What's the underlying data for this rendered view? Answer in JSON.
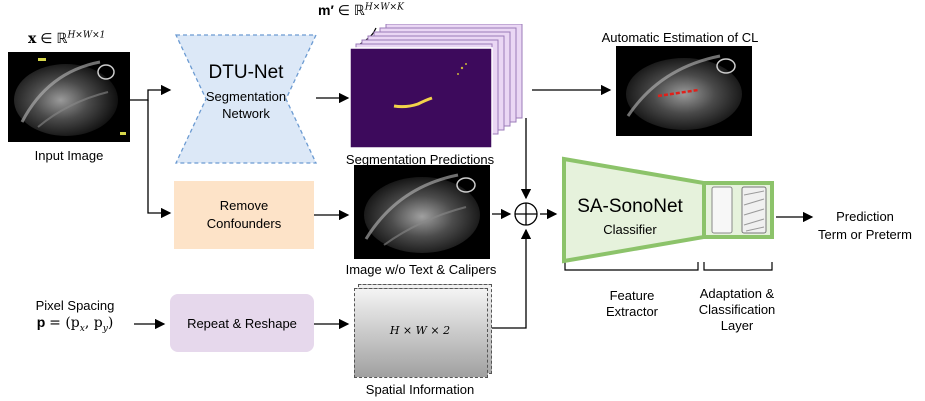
{
  "input": {
    "math_label": "x ∈ ℝ^{H×W×1}",
    "math_x": "x",
    "math_in": "∈ ℝ",
    "math_sup": "H×W×1",
    "caption": "Input Image"
  },
  "dtunet": {
    "title": "DTU-Net",
    "subtitle_line1": "Segmentation",
    "subtitle_line2": "Network"
  },
  "segmentation": {
    "math_m": "m′",
    "math_in": "∈ ℝ",
    "math_sup": "H×W×K",
    "caption": "Segmentation Predictions"
  },
  "auto_estimation": {
    "caption": "Automatic Estimation of CL"
  },
  "remove_confounders": {
    "line1": "Remove",
    "line2": "Confounders"
  },
  "image_wo": {
    "caption": "Image w/o Text & Calipers"
  },
  "pixel_spacing": {
    "line1": "Pixel Spacing",
    "math": "p = (p_x, p_y)",
    "math_p": "p",
    "math_rest": "= (p",
    "math_x": "x",
    "math_mid": ", p",
    "math_y": "y",
    "math_end": ")"
  },
  "repeat_reshape": {
    "label": "Repeat & Reshape"
  },
  "spatial": {
    "math": "H × W × 2",
    "caption": "Spatial Information"
  },
  "combine": {
    "symbol": "⊕"
  },
  "sasononet": {
    "title": "SA-SonoNet",
    "subtitle": "Classifier"
  },
  "feature_extractor": {
    "line1": "Feature",
    "line2": "Extractor"
  },
  "adaptation": {
    "line1": "Adaptation &",
    "line2": "Classification",
    "line3": "Layer"
  },
  "prediction": {
    "line1": "Prediction",
    "line2": "Term or Preterm"
  },
  "colors": {
    "dtunet_fill": "#dce8f7",
    "dtunet_stroke": "#6c9bd2",
    "remove_fill": "#fde3c8",
    "repeat_fill": "#e6d8ec",
    "sononet_fill": "#e6f2dc",
    "sononet_stroke": "#8cc36a",
    "seg_purple": "#3d0a5c",
    "seg_stack": "#ead7f4"
  }
}
